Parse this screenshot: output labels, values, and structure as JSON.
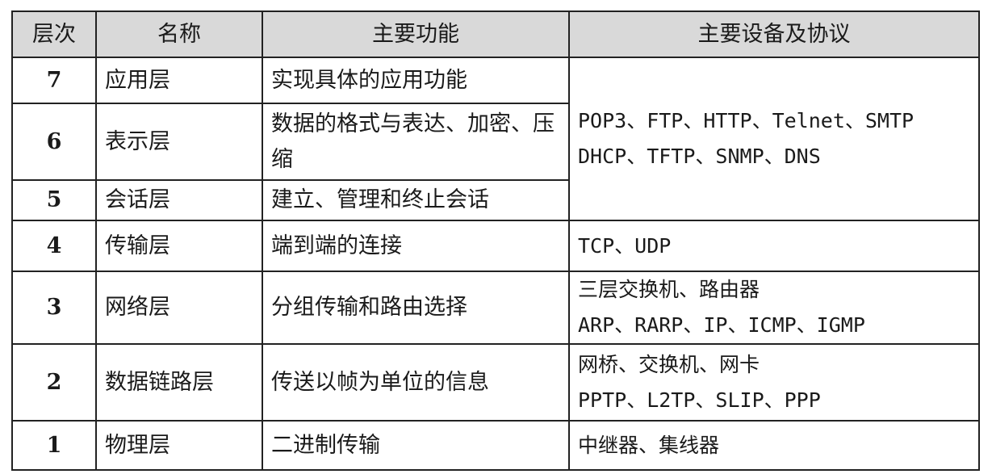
{
  "headers": [
    "层次",
    "名称",
    "主要功能",
    "主要设备及协议"
  ],
  "rows": [
    {
      "level": "7",
      "name": "应用层",
      "function": "实现具体的应用功能"
    },
    {
      "level": "6",
      "name": "表示层",
      "function": "数据的格式与表达、加密、压缩"
    },
    {
      "level": "5",
      "name": "会话层",
      "function": "建立、管理和终止会话"
    },
    {
      "level": "4",
      "name": "传输层",
      "function": "端到端的连接"
    },
    {
      "level": "3",
      "name": "网络层",
      "function": "分组传输和路由选择"
    },
    {
      "level": "2",
      "name": "数据链路层",
      "function": "传送以帧为单位的信息"
    },
    {
      "level": "1",
      "name": "物理层",
      "function": "二进制传输"
    }
  ],
  "protocols": {
    "upper": [
      "POP3、FTP、HTTP、Telnet、SMTP",
      "DHCP、TFTP、SNMP、DNS"
    ],
    "transport": [
      "TCP、UDP"
    ],
    "network": [
      "三层交换机、路由器",
      "ARP、RARP、IP、ICMP、IGMP"
    ],
    "datalink": [
      "网桥、交换机、网卡",
      "PPTP、L2TP、SLIP、PPP"
    ],
    "physical": [
      "中继器、集线器"
    ]
  }
}
